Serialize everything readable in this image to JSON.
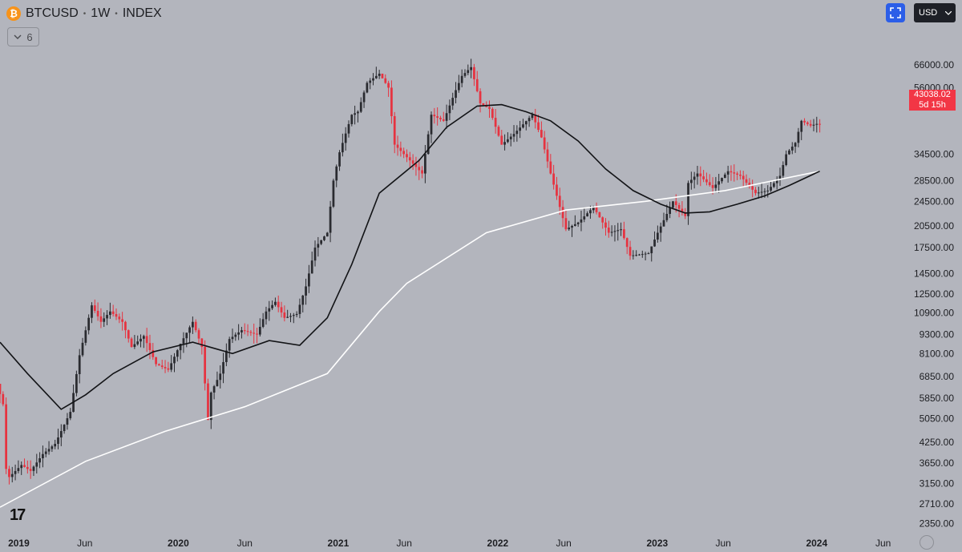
{
  "header": {
    "symbol": "BTCUSD",
    "interval": "1W",
    "type": "INDEX"
  },
  "indicator_toggle": {
    "count": "6"
  },
  "currency_selector": {
    "value": "USD"
  },
  "price_label": {
    "price": "43038.02",
    "countdown": "5d 15h"
  },
  "colors": {
    "up": "#2a2b30",
    "down": "#e63340",
    "ma_fast": "#121316",
    "ma_slow": "#ffffff",
    "background": "#b3b5bd"
  },
  "chart_data": {
    "type": "candlestick",
    "interval": "1W",
    "y_scale": "log",
    "ylim": [
      2200,
      90000
    ],
    "y_tick_labels": [
      "2350.00",
      "2710.00",
      "3150.00",
      "3650.00",
      "4250.00",
      "5050.00",
      "5850.00",
      "6850.00",
      "8100.00",
      "9300.00",
      "10900.00",
      "12500.00",
      "14500.00",
      "17500.00",
      "20500.00",
      "24500.00",
      "28500.00",
      "34500.00",
      "48500.00",
      "56000.00",
      "66000.00"
    ],
    "x_tick_labels": [
      "2019",
      "Jun",
      "2020",
      "Jun",
      "2021",
      "Jun",
      "2022",
      "Jun",
      "2023",
      "Jun",
      "2024",
      "Jun"
    ],
    "xlim": [
      "2018-11-19",
      "2024-07-01"
    ],
    "price_path": [
      [
        "2018-11-19",
        6500
      ],
      [
        "2018-12-03",
        5600
      ],
      [
        "2018-12-10",
        3500
      ],
      [
        "2018-12-17",
        3300
      ],
      [
        "2019-01-14",
        3600
      ],
      [
        "2019-02-04",
        3450
      ],
      [
        "2019-03-04",
        3900
      ],
      [
        "2019-04-01",
        4200
      ],
      [
        "2019-05-06",
        5300
      ],
      [
        "2019-05-27",
        8000
      ],
      [
        "2019-06-24",
        11500
      ],
      [
        "2019-07-15",
        10200
      ],
      [
        "2019-08-05",
        11000
      ],
      [
        "2019-09-02",
        10200
      ],
      [
        "2019-09-23",
        8500
      ],
      [
        "2019-10-21",
        9200
      ],
      [
        "2019-11-18",
        7500
      ],
      [
        "2019-12-16",
        7200
      ],
      [
        "2020-01-13",
        8700
      ],
      [
        "2020-02-10",
        10200
      ],
      [
        "2020-03-02",
        8500
      ],
      [
        "2020-03-16",
        5000
      ],
      [
        "2020-03-23",
        6100
      ],
      [
        "2020-04-13",
        7000
      ],
      [
        "2020-05-04",
        9000
      ],
      [
        "2020-06-01",
        9600
      ],
      [
        "2020-07-06",
        9300
      ],
      [
        "2020-07-27",
        11000
      ],
      [
        "2020-08-17",
        11800
      ],
      [
        "2020-09-07",
        10500
      ],
      [
        "2020-10-05",
        10800
      ],
      [
        "2020-10-26",
        13200
      ],
      [
        "2020-11-16",
        17500
      ],
      [
        "2020-12-14",
        19500
      ],
      [
        "2020-12-28",
        28500
      ],
      [
        "2021-01-11",
        35000
      ],
      [
        "2021-02-08",
        46000
      ],
      [
        "2021-02-22",
        47000
      ],
      [
        "2021-03-15",
        58000
      ],
      [
        "2021-04-12",
        62000
      ],
      [
        "2021-05-03",
        56000
      ],
      [
        "2021-05-17",
        37000
      ],
      [
        "2021-06-21",
        33000
      ],
      [
        "2021-07-19",
        30000
      ],
      [
        "2021-08-09",
        46000
      ],
      [
        "2021-09-06",
        44000
      ],
      [
        "2021-10-04",
        55000
      ],
      [
        "2021-10-18",
        61000
      ],
      [
        "2021-11-08",
        65000
      ],
      [
        "2021-11-29",
        50000
      ],
      [
        "2021-12-20",
        48000
      ],
      [
        "2022-01-17",
        37000
      ],
      [
        "2022-02-14",
        40000
      ],
      [
        "2022-03-28",
        46000
      ],
      [
        "2022-04-18",
        39000
      ],
      [
        "2022-05-09",
        30000
      ],
      [
        "2022-06-13",
        20000
      ],
      [
        "2022-07-11",
        21000
      ],
      [
        "2022-08-15",
        23500
      ],
      [
        "2022-09-19",
        19500
      ],
      [
        "2022-10-17",
        20000
      ],
      [
        "2022-11-07",
        16500
      ],
      [
        "2022-12-19",
        16800
      ],
      [
        "2023-01-09",
        19500
      ],
      [
        "2023-02-13",
        24500
      ],
      [
        "2023-03-13",
        22000
      ],
      [
        "2023-03-20",
        28000
      ],
      [
        "2023-04-10",
        30000
      ],
      [
        "2023-05-15",
        27000
      ],
      [
        "2023-06-19",
        30500
      ],
      [
        "2023-07-17",
        29500
      ],
      [
        "2023-08-21",
        26000
      ],
      [
        "2023-09-18",
        26500
      ],
      [
        "2023-10-16",
        29500
      ],
      [
        "2023-10-30",
        34500
      ],
      [
        "2023-11-20",
        37500
      ],
      [
        "2023-12-04",
        44000
      ],
      [
        "2023-12-25",
        42500
      ],
      [
        "2024-01-08",
        43038
      ]
    ],
    "ma_fast": [
      [
        "2018-11-19",
        8800
      ],
      [
        "2019-01-21",
        7000
      ],
      [
        "2019-04-08",
        5400
      ],
      [
        "2019-06-03",
        6000
      ],
      [
        "2019-08-05",
        7000
      ],
      [
        "2019-11-04",
        8200
      ],
      [
        "2020-02-03",
        8800
      ],
      [
        "2020-05-04",
        8100
      ],
      [
        "2020-07-27",
        8900
      ],
      [
        "2020-10-05",
        8600
      ],
      [
        "2020-12-07",
        10500
      ],
      [
        "2021-02-01",
        15500
      ],
      [
        "2021-04-05",
        26000
      ],
      [
        "2021-07-05",
        33000
      ],
      [
        "2021-09-06",
        42000
      ],
      [
        "2021-11-15",
        49000
      ],
      [
        "2022-01-10",
        49500
      ],
      [
        "2022-03-07",
        47000
      ],
      [
        "2022-05-02",
        44000
      ],
      [
        "2022-07-04",
        38000
      ],
      [
        "2022-09-05",
        31000
      ],
      [
        "2022-11-07",
        26500
      ],
      [
        "2023-01-09",
        24000
      ],
      [
        "2023-03-06",
        22500
      ],
      [
        "2023-05-01",
        22700
      ],
      [
        "2023-07-03",
        24000
      ],
      [
        "2023-09-04",
        25500
      ],
      [
        "2023-10-30",
        27500
      ],
      [
        "2024-01-08",
        30500
      ]
    ],
    "ma_slow": [
      [
        "2018-11-19",
        2650
      ],
      [
        "2019-06-03",
        3700
      ],
      [
        "2019-12-02",
        4600
      ],
      [
        "2020-06-01",
        5500
      ],
      [
        "2020-12-07",
        7000
      ],
      [
        "2021-04-05",
        11000
      ],
      [
        "2021-06-07",
        13500
      ],
      [
        "2021-12-06",
        19500
      ],
      [
        "2022-06-06",
        23000
      ],
      [
        "2022-12-05",
        24500
      ],
      [
        "2023-06-05",
        26500
      ],
      [
        "2024-01-08",
        30500
      ]
    ]
  }
}
